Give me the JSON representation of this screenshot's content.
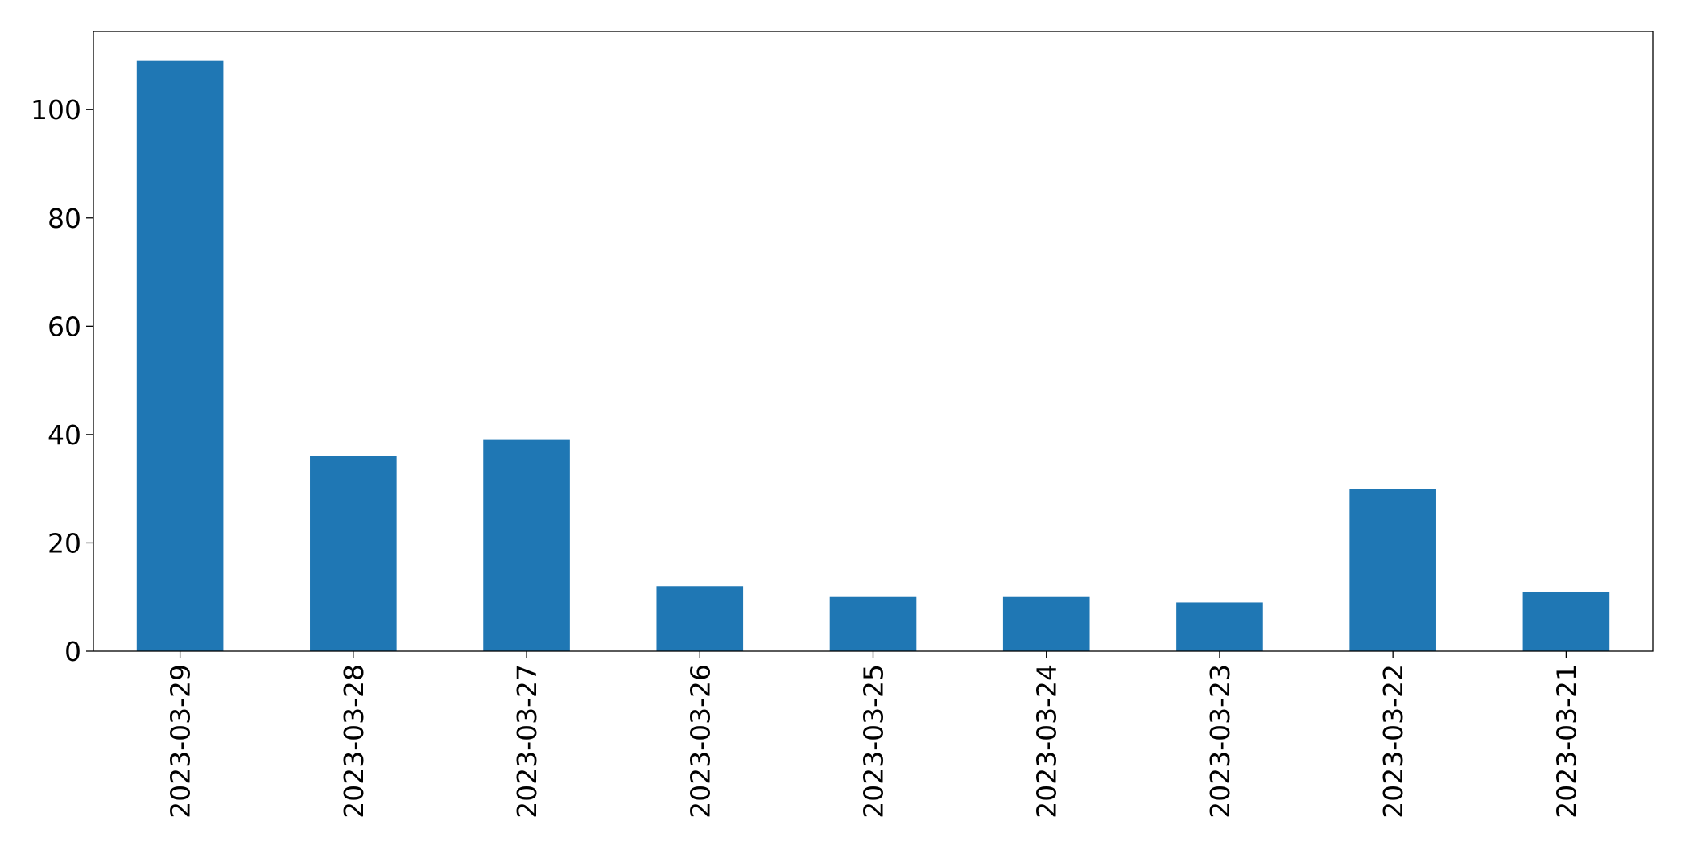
{
  "chart_data": {
    "type": "bar",
    "categories": [
      "2023-03-29",
      "2023-03-28",
      "2023-03-27",
      "2023-03-26",
      "2023-03-25",
      "2023-03-24",
      "2023-03-23",
      "2023-03-22",
      "2023-03-21"
    ],
    "values": [
      109,
      36,
      39,
      12,
      10,
      10,
      9,
      30,
      11
    ],
    "color": "#1f77b4",
    "ylim": [
      0,
      114.45
    ],
    "yticks": [
      0,
      20,
      40,
      60,
      80,
      100
    ],
    "grid": false
  }
}
